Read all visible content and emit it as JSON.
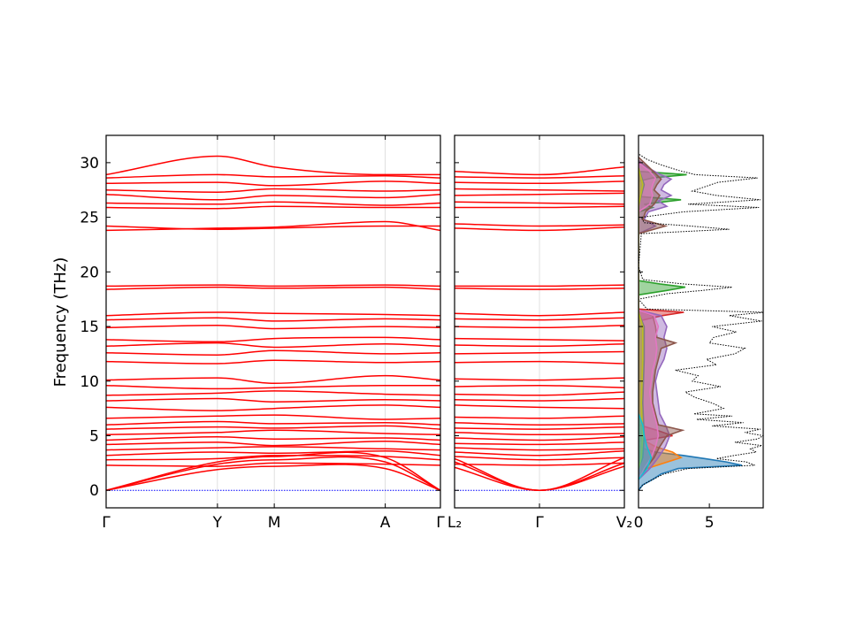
{
  "chart_data": [
    {
      "type": "line",
      "panel": "band-structure-left",
      "ylabel": "Frequency (THz)",
      "ylim": [
        -1.6,
        32.5
      ],
      "yticks": [
        0,
        5,
        10,
        15,
        20,
        25,
        30
      ],
      "xticks": [
        "Γ",
        "Y",
        "M",
        "A",
        "Γ"
      ],
      "xtick_positions": [
        0.0,
        0.333,
        0.503,
        0.835,
        1.0
      ],
      "colors": {
        "bands": "#ff0000",
        "zero_line": "#0000ff"
      },
      "series": [
        {
          "values": [
            0,
            1.9,
            2.2,
            2.0,
            0
          ]
        },
        {
          "values": [
            0,
            2.4,
            2.8,
            2.6,
            0
          ]
        },
        {
          "values": [
            0,
            2.6,
            3.1,
            3.0,
            0
          ]
        },
        {
          "values": [
            2.3,
            2.2,
            2.5,
            2.4,
            2.3
          ]
        },
        {
          "values": [
            2.8,
            2.9,
            3.2,
            3.1,
            2.8
          ]
        },
        {
          "values": [
            3.2,
            3.5,
            3.4,
            3.6,
            3.2
          ]
        },
        {
          "values": [
            3.7,
            3.9,
            4.0,
            3.8,
            3.7
          ]
        },
        {
          "values": [
            4.2,
            4.4,
            4.1,
            4.5,
            4.2
          ]
        },
        {
          "values": [
            4.6,
            4.9,
            4.7,
            4.8,
            4.6
          ]
        },
        {
          "values": [
            5.1,
            5.3,
            5.5,
            5.2,
            5.1
          ]
        },
        {
          "values": [
            5.6,
            5.8,
            5.7,
            5.9,
            5.6
          ]
        },
        {
          "values": [
            6.0,
            6.3,
            6.1,
            6.2,
            6.0
          ]
        },
        {
          "values": [
            6.6,
            6.8,
            6.9,
            6.5,
            6.6
          ]
        },
        {
          "values": [
            7.6,
            7.3,
            7.5,
            7.8,
            7.6
          ]
        },
        {
          "values": [
            8.2,
            8.4,
            8.1,
            8.3,
            8.2
          ]
        },
        {
          "values": [
            8.7,
            8.9,
            9.1,
            8.8,
            8.7
          ]
        },
        {
          "values": [
            9.6,
            9.3,
            9.4,
            9.6,
            9.6
          ]
        },
        {
          "values": [
            10.1,
            10.3,
            9.8,
            10.5,
            10.1
          ]
        },
        {
          "values": [
            11.8,
            11.6,
            11.9,
            11.7,
            11.8
          ]
        },
        {
          "values": [
            12.6,
            12.4,
            12.8,
            12.5,
            12.6
          ]
        },
        {
          "values": [
            13.2,
            13.5,
            13.1,
            13.4,
            13.2
          ]
        },
        {
          "values": [
            13.8,
            13.6,
            13.9,
            14.0,
            13.8
          ]
        },
        {
          "values": [
            14.9,
            15.1,
            14.8,
            15.0,
            14.9
          ]
        },
        {
          "values": [
            15.6,
            15.8,
            15.5,
            15.7,
            15.6
          ]
        },
        {
          "values": [
            16.0,
            16.3,
            16.2,
            16.1,
            16.0
          ]
        },
        {
          "values": [
            18.4,
            18.6,
            18.5,
            18.6,
            18.4
          ]
        },
        {
          "values": [
            18.7,
            18.8,
            18.7,
            18.8,
            18.7
          ]
        },
        {
          "values": [
            23.8,
            24.0,
            24.1,
            24.6,
            23.8
          ]
        },
        {
          "values": [
            24.2,
            23.9,
            24.0,
            24.2,
            24.2
          ]
        },
        {
          "values": [
            25.9,
            25.8,
            26.0,
            25.9,
            25.9
          ]
        },
        {
          "values": [
            26.3,
            26.2,
            26.4,
            26.1,
            26.3
          ]
        },
        {
          "values": [
            27.1,
            26.6,
            27.0,
            26.8,
            27.1
          ]
        },
        {
          "values": [
            27.5,
            27.3,
            27.6,
            27.4,
            27.5
          ]
        },
        {
          "values": [
            28.1,
            28.2,
            27.9,
            28.3,
            28.1
          ]
        },
        {
          "values": [
            28.6,
            28.9,
            28.7,
            28.8,
            28.6
          ]
        },
        {
          "values": [
            28.9,
            30.6,
            29.6,
            28.9,
            28.9
          ]
        }
      ]
    },
    {
      "type": "line",
      "panel": "band-structure-right",
      "ylim": [
        -1.6,
        32.5
      ],
      "xticks": [
        "L₂",
        "Γ",
        "V₂"
      ],
      "xtick_positions": [
        0.0,
        0.5,
        1.0
      ],
      "colors": {
        "bands": "#ff0000",
        "zero_line": "#0000ff"
      },
      "series": [
        {
          "values": [
            2.1,
            0,
            2.2
          ]
        },
        {
          "values": [
            2.6,
            0,
            2.5
          ]
        },
        {
          "values": [
            2.9,
            0,
            3.0
          ]
        },
        {
          "values": [
            2.4,
            2.3,
            2.5
          ]
        },
        {
          "values": [
            3.1,
            2.8,
            3.0
          ]
        },
        {
          "values": [
            3.5,
            3.2,
            3.6
          ]
        },
        {
          "values": [
            3.9,
            3.7,
            3.8
          ]
        },
        {
          "values": [
            4.3,
            4.2,
            4.4
          ]
        },
        {
          "values": [
            4.8,
            4.6,
            4.9
          ]
        },
        {
          "values": [
            5.3,
            5.1,
            5.2
          ]
        },
        {
          "values": [
            5.7,
            5.6,
            5.8
          ]
        },
        {
          "values": [
            6.2,
            6.0,
            6.1
          ]
        },
        {
          "values": [
            6.7,
            6.6,
            6.8
          ]
        },
        {
          "values": [
            7.8,
            7.6,
            7.5
          ]
        },
        {
          "values": [
            8.3,
            8.2,
            8.4
          ]
        },
        {
          "values": [
            8.8,
            8.7,
            9.0
          ]
        },
        {
          "values": [
            9.5,
            9.6,
            9.4
          ]
        },
        {
          "values": [
            10.2,
            10.1,
            10.3
          ]
        },
        {
          "values": [
            11.7,
            11.8,
            11.6
          ]
        },
        {
          "values": [
            12.5,
            12.6,
            12.7
          ]
        },
        {
          "values": [
            13.3,
            13.2,
            13.4
          ]
        },
        {
          "values": [
            13.9,
            13.8,
            13.7
          ]
        },
        {
          "values": [
            15.0,
            14.9,
            15.1
          ]
        },
        {
          "values": [
            15.7,
            15.6,
            15.8
          ]
        },
        {
          "values": [
            16.2,
            16.0,
            16.3
          ]
        },
        {
          "values": [
            18.5,
            18.4,
            18.5
          ]
        },
        {
          "values": [
            18.7,
            18.7,
            18.8
          ]
        },
        {
          "values": [
            24.0,
            23.8,
            24.1
          ]
        },
        {
          "values": [
            24.4,
            24.2,
            24.3
          ]
        },
        {
          "values": [
            25.9,
            25.9,
            26.0
          ]
        },
        {
          "values": [
            26.4,
            26.3,
            26.2
          ]
        },
        {
          "values": [
            27.0,
            27.1,
            27.2
          ]
        },
        {
          "values": [
            27.6,
            27.5,
            27.4
          ]
        },
        {
          "values": [
            28.2,
            28.1,
            28.3
          ]
        },
        {
          "values": [
            28.7,
            28.6,
            28.8
          ]
        },
        {
          "values": [
            29.2,
            28.9,
            29.6
          ]
        }
      ]
    },
    {
      "type": "area",
      "panel": "dos",
      "xlim": [
        0,
        8.8
      ],
      "xticks": [
        0,
        5
      ],
      "ylim": [
        -1.6,
        32.5
      ],
      "orientation": "horizontal",
      "total_dos": {
        "name": "total",
        "color": "#000000",
        "style": "dotted",
        "freq": [
          0.0,
          0.5,
          1.0,
          1.5,
          2.0,
          2.3,
          2.6,
          2.9,
          3.2,
          3.5,
          3.8,
          4.1,
          4.4,
          4.7,
          5.0,
          5.3,
          5.6,
          5.9,
          6.2,
          6.5,
          6.8,
          7.0,
          7.5,
          8.0,
          8.5,
          9.0,
          9.5,
          10.0,
          10.5,
          11.0,
          11.5,
          12.0,
          12.5,
          13.0,
          13.5,
          14.0,
          14.5,
          15.0,
          15.5,
          16.0,
          16.3,
          16.6,
          17.5,
          18.0,
          18.3,
          18.6,
          18.9,
          19.3,
          20.5,
          23.5,
          23.9,
          24.2,
          24.5,
          25.0,
          25.5,
          25.9,
          26.2,
          26.6,
          27.0,
          27.4,
          27.8,
          28.2,
          28.6,
          28.9,
          29.3,
          29.8,
          30.3,
          30.8
        ],
        "values": [
          0,
          0.3,
          1.0,
          1.8,
          3.5,
          8.2,
          7.6,
          5.5,
          6.8,
          8.3,
          7.9,
          8.7,
          6.8,
          8.4,
          8.8,
          7.5,
          8.6,
          5.2,
          7.4,
          4.1,
          6.6,
          3.9,
          6.0,
          5.2,
          4.0,
          3.3,
          5.8,
          3.8,
          4.2,
          2.6,
          5.5,
          4.8,
          6.8,
          7.5,
          5.0,
          5.3,
          6.9,
          5.2,
          8.7,
          6.4,
          8.9,
          0.6,
          0,
          2.0,
          4.5,
          6.6,
          3.1,
          0.3,
          0,
          0.2,
          6.4,
          3.7,
          0.4,
          0.2,
          3.2,
          8.5,
          3.5,
          8.6,
          5.5,
          3.8,
          4.7,
          5.6,
          8.4,
          4.0,
          2.8,
          1.6,
          0.6,
          0
        ]
      },
      "series": [
        {
          "name": "",
          "color": "#1f77b4",
          "freq": [
            0.0,
            0.5,
            1.0,
            1.5,
            2.0,
            2.3,
            2.6,
            2.9,
            3.2,
            3.5,
            3.8,
            4.1
          ],
          "values": [
            0,
            0.3,
            1.0,
            1.6,
            2.8,
            7.3,
            6.2,
            4.7,
            3.1,
            1.2,
            0.4,
            0
          ]
        },
        {
          "name": "",
          "color": "#ff7f0e",
          "freq": [
            1.5,
            2.0,
            2.5,
            3.0,
            3.5,
            4.0,
            4.5,
            5.0
          ],
          "values": [
            0,
            0.6,
            1.8,
            3.0,
            2.4,
            1.2,
            0.5,
            0
          ]
        },
        {
          "name": "",
          "color": "#2ca02c",
          "freq": [
            17.9,
            18.3,
            18.6,
            18.9,
            19.2,
            25.5,
            25.9,
            26.2,
            26.6,
            26.9,
            28.3,
            28.6,
            28.9,
            29.2
          ],
          "values": [
            0,
            2.0,
            3.3,
            1.5,
            0,
            0,
            1.0,
            0.4,
            3.0,
            0,
            0,
            1.0,
            3.4,
            0
          ]
        },
        {
          "name": "",
          "color": "#d62728",
          "freq": [
            4.5,
            5.0,
            5.5,
            6.0,
            15.5,
            16.0,
            16.3,
            16.6
          ],
          "values": [
            0,
            2.4,
            1.3,
            0,
            0,
            1.7,
            3.2,
            0
          ]
        },
        {
          "name": "",
          "color": "#9467bd",
          "freq": [
            1.0,
            2.0,
            3.0,
            4.0,
            5.0,
            6.0,
            7.0,
            8.0,
            9.0,
            10.0,
            11.0,
            12.0,
            13.0,
            14.0,
            15.0,
            16.0,
            16.5,
            23.5,
            24.2,
            24.8,
            25.5,
            26.0,
            26.5,
            27.0,
            27.5,
            28.0,
            28.5,
            29.0,
            29.6,
            30.2
          ],
          "values": [
            0,
            0.8,
            1.4,
            1.9,
            2.2,
            1.9,
            1.5,
            1.4,
            1.3,
            1.2,
            1.4,
            1.8,
            2.0,
            1.8,
            2.0,
            1.6,
            0,
            0,
            1.2,
            0.4,
            0.7,
            2.0,
            1.4,
            2.3,
            1.6,
            1.8,
            2.3,
            1.4,
            0.6,
            0
          ]
        },
        {
          "name": "",
          "color": "#8c564b",
          "freq": [
            1.0,
            2.0,
            3.0,
            4.0,
            5.0,
            5.5,
            6.0,
            7.0,
            8.0,
            9.0,
            10.0,
            11.0,
            12.0,
            13.0,
            13.5,
            14.0,
            15.0,
            16.0,
            16.5,
            23.5,
            24.2,
            24.8,
            25.5,
            26.2,
            27.0,
            27.5,
            28.0,
            28.5,
            29.0,
            29.5,
            30.5
          ],
          "values": [
            0,
            0.5,
            1.1,
            1.5,
            2.0,
            3.1,
            1.4,
            1.2,
            1.0,
            1.0,
            1.1,
            1.2,
            1.4,
            1.6,
            2.6,
            1.3,
            1.2,
            1.0,
            0,
            0,
            1.9,
            0.3,
            0.5,
            1.1,
            1.5,
            1.1,
            1.3,
            1.6,
            1.2,
            0.8,
            0
          ]
        },
        {
          "name": "",
          "color": "#e377c2",
          "freq": [
            1.0,
            2.0,
            3.0,
            4.0,
            5.0,
            6.0,
            7.0,
            8.0,
            9.0,
            10.0,
            11.0,
            12.0,
            13.0,
            14.0,
            15.0,
            16.0,
            16.5,
            25.5,
            26.2,
            27.0,
            27.5,
            28.0,
            28.6,
            29.2,
            30.0
          ],
          "values": [
            0,
            0.4,
            0.9,
            1.2,
            1.4,
            1.3,
            1.1,
            0.9,
            0.8,
            0.9,
            1.0,
            1.2,
            1.3,
            1.2,
            1.4,
            1.1,
            0,
            0,
            0.8,
            1.0,
            0.9,
            1.0,
            1.2,
            0.8,
            0
          ]
        },
        {
          "name": "",
          "color": "#7f7f7f",
          "freq": [
            2.0,
            3.0,
            5.0,
            8.0,
            12.0,
            15.0,
            16.3,
            26.0,
            28.0,
            29.5
          ],
          "values": [
            0,
            0.3,
            0.4,
            0.3,
            0.4,
            0.4,
            0,
            0,
            0.4,
            0
          ]
        },
        {
          "name": "",
          "color": "#bcbd22",
          "freq": [
            2.0,
            3.0,
            5.0,
            8.0,
            12.0,
            15.0,
            16.3,
            26.0,
            28.0,
            29.5
          ],
          "values": [
            0,
            0.2,
            0.3,
            0.2,
            0.3,
            0.3,
            0,
            0,
            0.3,
            0
          ]
        },
        {
          "name": "",
          "color": "#17becf",
          "freq": [
            1.0,
            2.0,
            3.0,
            4.0,
            5.0,
            6.0,
            7.0
          ],
          "values": [
            0,
            0.6,
            0.9,
            0.6,
            0.4,
            0.3,
            0
          ]
        }
      ]
    }
  ]
}
